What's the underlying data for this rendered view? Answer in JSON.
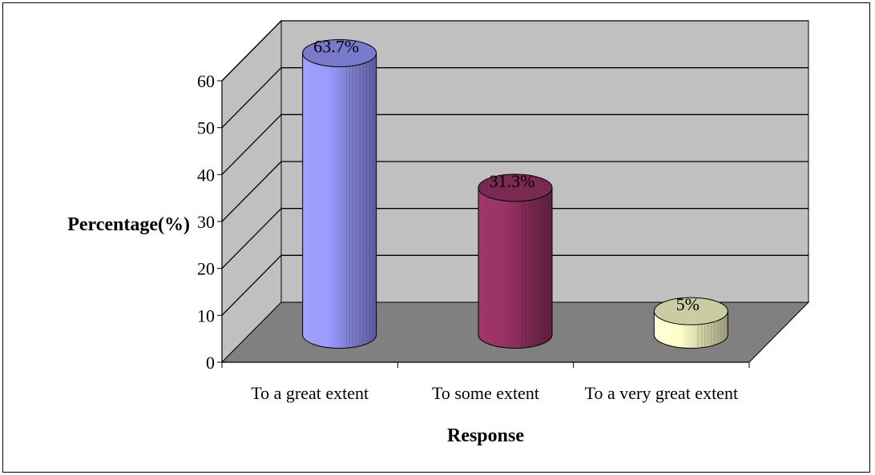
{
  "chart_data": {
    "type": "bar",
    "categories": [
      "To a great extent",
      "To some extent",
      "To a very great extent"
    ],
    "values": [
      63.7,
      31.3,
      5
    ],
    "data_labels": [
      "63.7%",
      "31.3%",
      "5%"
    ],
    "xlabel": "Response",
    "ylabel": "Percentage(%)",
    "ylim": [
      0,
      60
    ],
    "yticks": [
      0,
      10,
      20,
      30,
      40,
      50,
      60
    ],
    "grid": true,
    "style": "3d-cylinder",
    "colors": [
      "#9999ff",
      "#993366",
      "#ffffcc"
    ],
    "wall_color": "#c0c0c0",
    "floor_color": "#808080"
  }
}
